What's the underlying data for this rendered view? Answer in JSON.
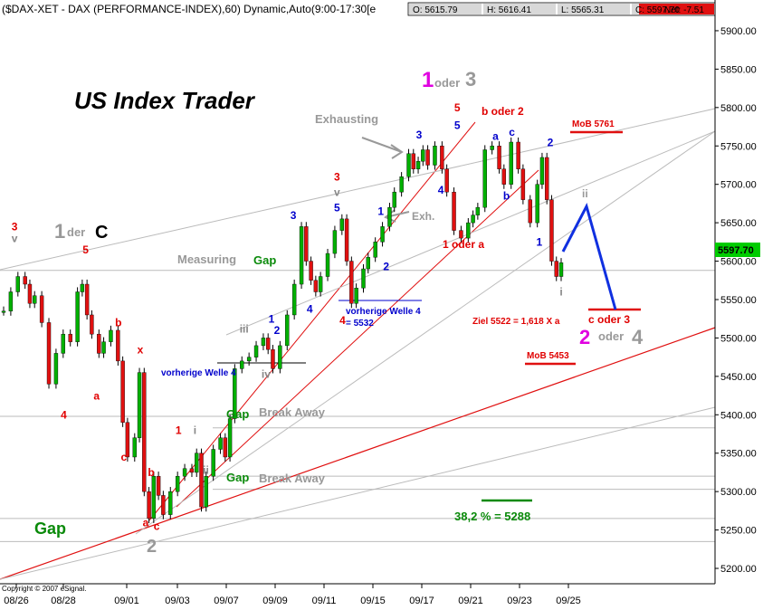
{
  "header": {
    "title": "($DAX-XET - DAX (PERFORMANCE-INDEX),60) Dynamic,Auto(9:00-17:30[e",
    "open": "O: 5615.79",
    "high": "H: 5616.41",
    "low": "L: 5565.31",
    "close": "C: 5597.70",
    "net": "Net: -7.51"
  },
  "brand": "US Index Trader",
  "copyright": "Copyright © 2007 eSignal.",
  "chart_data": {
    "type": "candlestick",
    "title": "($DAX-XET - DAX (PERFORMANCE-INDEX),60) Dynamic,Auto(9:00-17:30[e",
    "ylim": [
      5180,
      5940
    ],
    "y_ticks": [
      "5900.00",
      "5850.00",
      "5800.00",
      "5750.00",
      "5700.00",
      "5650.00",
      "5600.00",
      "5550.00",
      "5500.00",
      "5450.00",
      "5400.00",
      "5350.00",
      "5300.00",
      "5250.00",
      "5200.00"
    ],
    "x_ticks": [
      "08/26",
      "08/28",
      "09/01",
      "09/03",
      "09/07",
      "09/09",
      "09/11",
      "09/15",
      "09/17",
      "09/21",
      "09/23",
      "09/25"
    ],
    "last_price": "5597.70",
    "price_path": [
      {
        "t": 0,
        "p": 5535
      },
      {
        "t": 3,
        "p": 5560
      },
      {
        "t": 6,
        "p": 5580
      },
      {
        "t": 9,
        "p": 5570
      },
      {
        "t": 11,
        "p": 5545
      },
      {
        "t": 13,
        "p": 5555
      },
      {
        "t": 16,
        "p": 5520
      },
      {
        "t": 19,
        "p": 5440
      },
      {
        "t": 22,
        "p": 5480
      },
      {
        "t": 25,
        "p": 5505
      },
      {
        "t": 28,
        "p": 5495
      },
      {
        "t": 31,
        "p": 5560
      },
      {
        "t": 33,
        "p": 5570
      },
      {
        "t": 35,
        "p": 5530
      },
      {
        "t": 37,
        "p": 5505
      },
      {
        "t": 40,
        "p": 5480
      },
      {
        "t": 42,
        "p": 5495
      },
      {
        "t": 45,
        "p": 5510
      },
      {
        "t": 48,
        "p": 5470
      },
      {
        "t": 50,
        "p": 5390
      },
      {
        "t": 52,
        "p": 5345
      },
      {
        "t": 55,
        "p": 5370
      },
      {
        "t": 57,
        "p": 5455
      },
      {
        "t": 59,
        "p": 5300
      },
      {
        "t": 61,
        "p": 5265
      },
      {
        "t": 63,
        "p": 5320
      },
      {
        "t": 65,
        "p": 5295
      },
      {
        "t": 67,
        "p": 5270
      },
      {
        "t": 70,
        "p": 5300
      },
      {
        "t": 73,
        "p": 5320
      },
      {
        "t": 76,
        "p": 5330
      },
      {
        "t": 79,
        "p": 5325
      },
      {
        "t": 81,
        "p": 5350
      },
      {
        "t": 83,
        "p": 5280
      },
      {
        "t": 85,
        "p": 5320
      },
      {
        "t": 88,
        "p": 5355
      },
      {
        "t": 91,
        "p": 5370
      },
      {
        "t": 93,
        "p": 5345
      },
      {
        "t": 95,
        "p": 5395
      },
      {
        "t": 97,
        "p": 5460
      },
      {
        "t": 100,
        "p": 5470
      },
      {
        "t": 103,
        "p": 5475
      },
      {
        "t": 106,
        "p": 5490
      },
      {
        "t": 109,
        "p": 5500
      },
      {
        "t": 111,
        "p": 5485
      },
      {
        "t": 113,
        "p": 5460
      },
      {
        "t": 116,
        "p": 5490
      },
      {
        "t": 119,
        "p": 5530
      },
      {
        "t": 122,
        "p": 5570
      },
      {
        "t": 125,
        "p": 5645
      },
      {
        "t": 127,
        "p": 5600
      },
      {
        "t": 129,
        "p": 5575
      },
      {
        "t": 131,
        "p": 5560
      },
      {
        "t": 133,
        "p": 5580
      },
      {
        "t": 136,
        "p": 5610
      },
      {
        "t": 139,
        "p": 5640
      },
      {
        "t": 142,
        "p": 5655
      },
      {
        "t": 144,
        "p": 5600
      },
      {
        "t": 146,
        "p": 5545
      },
      {
        "t": 148,
        "p": 5565
      },
      {
        "t": 151,
        "p": 5590
      },
      {
        "t": 153,
        "p": 5605
      },
      {
        "t": 156,
        "p": 5625
      },
      {
        "t": 159,
        "p": 5645
      },
      {
        "t": 162,
        "p": 5670
      },
      {
        "t": 164,
        "p": 5690
      },
      {
        "t": 167,
        "p": 5710
      },
      {
        "t": 170,
        "p": 5740
      },
      {
        "t": 172,
        "p": 5720
      },
      {
        "t": 174,
        "p": 5730
      },
      {
        "t": 176,
        "p": 5745
      },
      {
        "t": 178,
        "p": 5725
      },
      {
        "t": 181,
        "p": 5750
      },
      {
        "t": 184,
        "p": 5720
      },
      {
        "t": 186,
        "p": 5690
      },
      {
        "t": 189,
        "p": 5640
      },
      {
        "t": 192,
        "p": 5630
      },
      {
        "t": 195,
        "p": 5650
      },
      {
        "t": 197,
        "p": 5660
      },
      {
        "t": 199,
        "p": 5670
      },
      {
        "t": 202,
        "p": 5745
      },
      {
        "t": 205,
        "p": 5750
      },
      {
        "t": 208,
        "p": 5720
      },
      {
        "t": 210,
        "p": 5700
      },
      {
        "t": 213,
        "p": 5755
      },
      {
        "t": 216,
        "p": 5720
      },
      {
        "t": 218,
        "p": 5680
      },
      {
        "t": 221,
        "p": 5650
      },
      {
        "t": 224,
        "p": 5700
      },
      {
        "t": 226,
        "p": 5735
      },
      {
        "t": 228,
        "p": 5680
      },
      {
        "t": 230,
        "p": 5600
      },
      {
        "t": 232,
        "p": 5580
      },
      {
        "t": 234,
        "p": 5598
      }
    ],
    "projection_labels": {
      "ii": "ii",
      "target_label": "c oder 3"
    },
    "annotations": {
      "wave_1_der_c": {
        "big": "1",
        "small": "der",
        "end": "C"
      },
      "wave_1_oder_3": {
        "big": "1",
        "small": "oder",
        "end": "3"
      },
      "wave_2_oder_4": {
        "big": "2",
        "small": "oder",
        "end": "4"
      },
      "wave_2_low": "2",
      "gap_low": "Gap",
      "gap1": "Gap",
      "breakaway1": "Break Away",
      "gap2": "Gap",
      "breakaway2": "Break Away",
      "gap3": "Gap",
      "measuring": "Measuring",
      "exhausting": "Exhausting",
      "exh": "Exh.",
      "fib": "38,2 % = 5288",
      "mob_top": "MoB 5761",
      "mob_bottom": "MoB 5453",
      "ziel": "Ziel 5522 = 1,618 X a",
      "c_oder_3": "c oder 3",
      "b_oder_2": "b oder 2",
      "one_oder_a": "1 oder a",
      "vorherige1": "vorherige Welle 4",
      "vorherige2_a": "vorherige  Welle 4",
      "vorherige2_b": "= 5532",
      "small_marks": [
        {
          "text": "3",
          "color": "#e00000",
          "t": 2,
          "p": 5640
        },
        {
          "text": "v",
          "color": "#888888",
          "t": 2,
          "p": 5625
        },
        {
          "text": "5",
          "color": "#e00000",
          "t": 15,
          "p": 5610
        },
        {
          "text": "4",
          "color": "#e00000",
          "t": 11,
          "p": 5395
        },
        {
          "text": "a",
          "color": "#e00000",
          "t": 17,
          "p": 5420
        },
        {
          "text": "b",
          "color": "#e00000",
          "t": 21,
          "p": 5515
        },
        {
          "text": "x",
          "color": "#e00000",
          "t": 25,
          "p": 5480
        },
        {
          "text": "c",
          "color": "#e00000",
          "t": 22,
          "p": 5340
        },
        {
          "text": "b",
          "color": "#e00000",
          "t": 27,
          "p": 5320
        },
        {
          "text": "a",
          "color": "#e00000",
          "t": 26,
          "p": 5255
        },
        {
          "text": "c",
          "color": "#e00000",
          "t": 28,
          "p": 5250
        },
        {
          "text": "1",
          "color": "#e00000",
          "t": 32,
          "p": 5375
        },
        {
          "text": "i",
          "color": "#888888",
          "t": 35,
          "p": 5375
        },
        {
          "text": "ii",
          "color": "#888888",
          "t": 37,
          "p": 5323
        },
        {
          "text": "iii",
          "color": "#888888",
          "t": 44,
          "p": 5507
        },
        {
          "text": "iv",
          "color": "#888888",
          "t": 48,
          "p": 5448
        },
        {
          "text": "1",
          "color": "#0000cc",
          "t": 49,
          "p": 5520
        },
        {
          "text": "2",
          "color": "#0000cc",
          "t": 50,
          "p": 5505
        },
        {
          "text": "3",
          "color": "#0000cc",
          "t": 53,
          "p": 5655
        },
        {
          "text": "4",
          "color": "#0000cc",
          "t": 56,
          "p": 5533
        },
        {
          "text": "4",
          "color": "#e00000",
          "t": 62,
          "p": 5518
        },
        {
          "text": "5",
          "color": "#0000cc",
          "t": 61,
          "p": 5665
        },
        {
          "text": "v",
          "color": "#888888",
          "t": 61,
          "p": 5685
        },
        {
          "text": "3",
          "color": "#e00000",
          "t": 61,
          "p": 5705
        },
        {
          "text": "1",
          "color": "#0000cc",
          "t": 69,
          "p": 5660
        },
        {
          "text": "2",
          "color": "#0000cc",
          "t": 70,
          "p": 5588
        },
        {
          "text": "3",
          "color": "#0000cc",
          "t": 76,
          "p": 5760
        },
        {
          "text": "4",
          "color": "#0000cc",
          "t": 80,
          "p": 5688
        },
        {
          "text": "5",
          "color": "#0000cc",
          "t": 83,
          "p": 5772
        },
        {
          "text": "5",
          "color": "#e00000",
          "t": 83,
          "p": 5795
        },
        {
          "text": "a",
          "color": "#0000cc",
          "t": 90,
          "p": 5758
        },
        {
          "text": "b",
          "color": "#0000cc",
          "t": 92,
          "p": 5680
        },
        {
          "text": "c",
          "color": "#0000cc",
          "t": 93,
          "p": 5763
        },
        {
          "text": "1",
          "color": "#0000cc",
          "t": 98,
          "p": 5620
        },
        {
          "text": "2",
          "color": "#0000cc",
          "t": 100,
          "p": 5750
        },
        {
          "text": "i",
          "color": "#888888",
          "t": 102,
          "p": 5555
        }
      ]
    }
  }
}
